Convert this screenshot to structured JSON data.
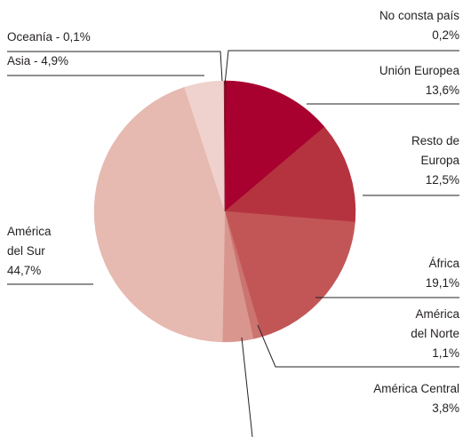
{
  "chart_data": {
    "type": "pie",
    "values": [
      0.2,
      13.6,
      12.5,
      19.1,
      1.1,
      3.8,
      44.7,
      4.9,
      0.1
    ],
    "value_labels": [
      "No consta país\n0,2%",
      "Unión Europea\n13,6%",
      "Resto de\nEuropa\n12,5%",
      "África\n19,1%",
      "América\ndel Norte\n1,1%",
      "América Central\n3,8%",
      "América\ndel Sur\n44,7%",
      "Asia - 4,9%",
      "Oceanía - 0,1%"
    ],
    "colors": [
      "#6e0f22",
      "#a8002f",
      "#b5333f",
      "#c25657",
      "#cc7470",
      "#d9968f",
      "#e6b9b1",
      "#efd2cd",
      "#8a1a2c"
    ]
  }
}
